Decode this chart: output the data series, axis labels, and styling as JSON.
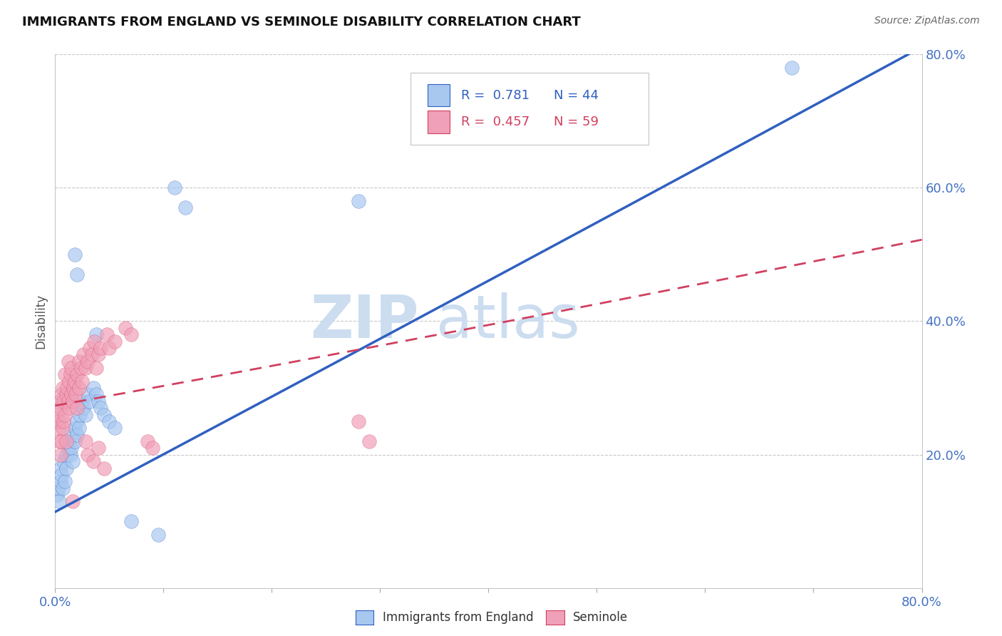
{
  "title": "IMMIGRANTS FROM ENGLAND VS SEMINOLE DISABILITY CORRELATION CHART",
  "source": "Source: ZipAtlas.com",
  "ylabel": "Disability",
  "xlim": [
    0.0,
    0.8
  ],
  "ylim": [
    0.0,
    0.8
  ],
  "xticks": [
    0.0,
    0.1,
    0.2,
    0.3,
    0.4,
    0.5,
    0.6,
    0.7,
    0.8
  ],
  "xtick_labels": [
    "0.0%",
    "",
    "",
    "",
    "",
    "",
    "",
    "",
    "80.0%"
  ],
  "yticks": [
    0.0,
    0.2,
    0.4,
    0.6,
    0.8
  ],
  "ytick_labels": [
    "",
    "20.0%",
    "40.0%",
    "60.0%",
    "80.0%"
  ],
  "legend_r_blue": "R =  0.781",
  "legend_n_blue": "N = 44",
  "legend_r_pink": "R =  0.457",
  "legend_n_pink": "N = 59",
  "blue_scatter_color": "#a8c8f0",
  "pink_scatter_color": "#f0a0b8",
  "line_blue": "#3060c0",
  "line_pink": "#d04060",
  "scatter_blue": [
    [
      0.002,
      0.14
    ],
    [
      0.003,
      0.15
    ],
    [
      0.004,
      0.13
    ],
    [
      0.005,
      0.16
    ],
    [
      0.005,
      0.18
    ],
    [
      0.006,
      0.17
    ],
    [
      0.007,
      0.15
    ],
    [
      0.008,
      0.19
    ],
    [
      0.009,
      0.16
    ],
    [
      0.01,
      0.18
    ],
    [
      0.01,
      0.2
    ],
    [
      0.012,
      0.21
    ],
    [
      0.013,
      0.22
    ],
    [
      0.014,
      0.2
    ],
    [
      0.015,
      0.23
    ],
    [
      0.015,
      0.21
    ],
    [
      0.016,
      0.19
    ],
    [
      0.018,
      0.22
    ],
    [
      0.018,
      0.24
    ],
    [
      0.02,
      0.25
    ],
    [
      0.02,
      0.23
    ],
    [
      0.022,
      0.24
    ],
    [
      0.023,
      0.26
    ],
    [
      0.025,
      0.28
    ],
    [
      0.026,
      0.27
    ],
    [
      0.028,
      0.26
    ],
    [
      0.03,
      0.29
    ],
    [
      0.032,
      0.28
    ],
    [
      0.035,
      0.3
    ],
    [
      0.038,
      0.29
    ],
    [
      0.04,
      0.28
    ],
    [
      0.042,
      0.27
    ],
    [
      0.045,
      0.26
    ],
    [
      0.05,
      0.25
    ],
    [
      0.055,
      0.24
    ],
    [
      0.02,
      0.47
    ],
    [
      0.018,
      0.5
    ],
    [
      0.038,
      0.38
    ],
    [
      0.11,
      0.6
    ],
    [
      0.12,
      0.57
    ],
    [
      0.28,
      0.58
    ],
    [
      0.07,
      0.1
    ],
    [
      0.095,
      0.08
    ],
    [
      0.68,
      0.78
    ]
  ],
  "scatter_pink": [
    [
      0.002,
      0.26
    ],
    [
      0.003,
      0.24
    ],
    [
      0.003,
      0.28
    ],
    [
      0.004,
      0.25
    ],
    [
      0.004,
      0.22
    ],
    [
      0.005,
      0.27
    ],
    [
      0.005,
      0.2
    ],
    [
      0.006,
      0.29
    ],
    [
      0.006,
      0.22
    ],
    [
      0.007,
      0.3
    ],
    [
      0.007,
      0.24
    ],
    [
      0.008,
      0.28
    ],
    [
      0.008,
      0.25
    ],
    [
      0.009,
      0.26
    ],
    [
      0.009,
      0.32
    ],
    [
      0.01,
      0.29
    ],
    [
      0.01,
      0.22
    ],
    [
      0.011,
      0.3
    ],
    [
      0.012,
      0.28
    ],
    [
      0.012,
      0.34
    ],
    [
      0.013,
      0.31
    ],
    [
      0.013,
      0.27
    ],
    [
      0.014,
      0.32
    ],
    [
      0.015,
      0.33
    ],
    [
      0.015,
      0.29
    ],
    [
      0.016,
      0.28
    ],
    [
      0.017,
      0.3
    ],
    [
      0.018,
      0.31
    ],
    [
      0.019,
      0.29
    ],
    [
      0.02,
      0.32
    ],
    [
      0.02,
      0.27
    ],
    [
      0.022,
      0.3
    ],
    [
      0.022,
      0.34
    ],
    [
      0.024,
      0.33
    ],
    [
      0.025,
      0.31
    ],
    [
      0.026,
      0.35
    ],
    [
      0.028,
      0.33
    ],
    [
      0.03,
      0.34
    ],
    [
      0.032,
      0.36
    ],
    [
      0.034,
      0.35
    ],
    [
      0.036,
      0.37
    ],
    [
      0.038,
      0.33
    ],
    [
      0.04,
      0.35
    ],
    [
      0.042,
      0.36
    ],
    [
      0.048,
      0.38
    ],
    [
      0.05,
      0.36
    ],
    [
      0.055,
      0.37
    ],
    [
      0.065,
      0.39
    ],
    [
      0.07,
      0.38
    ],
    [
      0.028,
      0.22
    ],
    [
      0.03,
      0.2
    ],
    [
      0.035,
      0.19
    ],
    [
      0.04,
      0.21
    ],
    [
      0.045,
      0.18
    ],
    [
      0.085,
      0.22
    ],
    [
      0.09,
      0.21
    ],
    [
      0.28,
      0.25
    ],
    [
      0.29,
      0.22
    ],
    [
      0.016,
      0.13
    ]
  ]
}
